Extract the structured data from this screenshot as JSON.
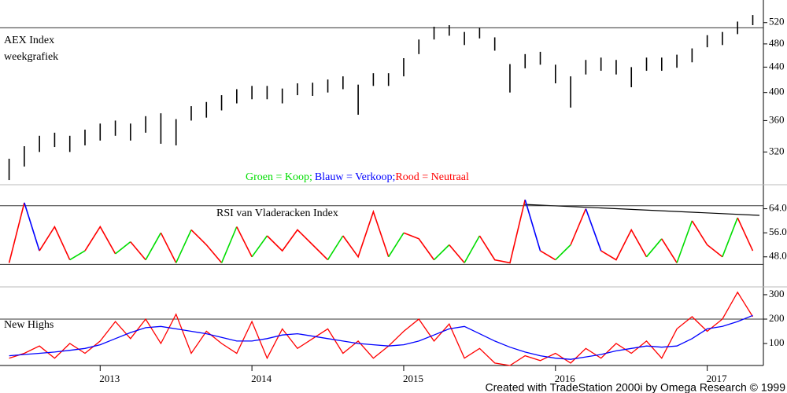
{
  "chart_data": [
    {
      "type": "range_bar",
      "log": true,
      "color": "#000000",
      "annotations": [
        "AEX Index",
        "weekgrafiek"
      ],
      "legend_text": [
        {
          "text": "Groen = Koop;",
          "color": "#00dd00"
        },
        {
          "text": "Blauw = Verkoop;",
          "color": "#0000ff"
        },
        {
          "text": "Rood = Neutraal",
          "color": "#ff0000"
        }
      ],
      "x": [
        2012.4,
        2012.5,
        2012.6,
        2012.7,
        2012.8,
        2012.9,
        2013.0,
        2013.1,
        2013.2,
        2013.3,
        2013.4,
        2013.5,
        2013.6,
        2013.7,
        2013.8,
        2013.9,
        2014.0,
        2014.1,
        2014.2,
        2014.3,
        2014.4,
        2014.5,
        2014.6,
        2014.7,
        2014.8,
        2014.9,
        2015.0,
        2015.1,
        2015.2,
        2015.3,
        2015.4,
        2015.5,
        2015.6,
        2015.7,
        2015.8,
        2015.9,
        2016.0,
        2016.1,
        2016.2,
        2016.3,
        2016.4,
        2016.5,
        2016.6,
        2016.7,
        2016.8,
        2016.9,
        2017.0,
        2017.1,
        2017.2,
        2017.3
      ],
      "xlim": [
        2012.34,
        2017.37
      ],
      "xticks": [
        2013,
        2014,
        2015,
        2016,
        2017
      ],
      "high": [
        312,
        327,
        340,
        344,
        340,
        348,
        356,
        360,
        356,
        366,
        370,
        362,
        380,
        386,
        396,
        405,
        410,
        410,
        406,
        414,
        415,
        420,
        425,
        412,
        430,
        430,
        455,
        488,
        512,
        515,
        502,
        510,
        492,
        445,
        462,
        466,
        444,
        425,
        452,
        456,
        452,
        440,
        456,
        456,
        461,
        472,
        496,
        502,
        522,
        535
      ],
      "low": [
        288,
        303,
        320,
        326,
        320,
        328,
        334,
        340,
        334,
        344,
        330,
        328,
        360,
        364,
        374,
        384,
        390,
        390,
        384,
        396,
        395,
        400,
        405,
        368,
        410,
        410,
        425,
        462,
        488,
        495,
        478,
        490,
        468,
        400,
        438,
        444,
        414,
        378,
        428,
        434,
        428,
        408,
        434,
        434,
        439,
        448,
        474,
        478,
        498,
        515
      ],
      "ylim": [
        283,
        566
      ],
      "yticks": [
        320,
        360,
        400,
        440,
        480,
        520
      ],
      "reference_lines": [
        510
      ]
    },
    {
      "type": "line",
      "annotations": [
        "RSI van Vladeracken Index"
      ],
      "values": [
        46,
        66,
        50,
        58,
        47,
        50,
        58,
        49,
        53,
        47,
        56,
        46,
        57,
        52,
        46,
        58,
        48,
        55,
        50,
        57,
        52,
        47,
        55,
        48,
        63,
        48,
        56,
        54,
        47,
        52,
        46,
        55,
        47,
        46,
        67,
        50,
        47,
        52,
        64,
        50,
        47,
        57,
        48,
        54,
        46,
        60,
        52,
        48,
        61,
        50
      ],
      "colors": [
        "#ff0000",
        "#ff0000",
        "#0000ff",
        "#ff0000",
        "#ff0000",
        "#00dd00",
        "#ff0000",
        "#ff0000",
        "#00dd00",
        "#ff0000",
        "#00dd00",
        "#ff0000",
        "#00dd00",
        "#ff0000",
        "#ff0000",
        "#00dd00",
        "#ff0000",
        "#00dd00",
        "#ff0000",
        "#ff0000",
        "#ff0000",
        "#ff0000",
        "#00dd00",
        "#ff0000",
        "#ff0000",
        "#ff0000",
        "#00dd00",
        "#ff0000",
        "#ff0000",
        "#00dd00",
        "#ff0000",
        "#00dd00",
        "#ff0000",
        "#ff0000",
        "#ff0000",
        "#0000ff",
        "#ff0000",
        "#00dd00",
        "#ff0000",
        "#0000ff",
        "#ff0000",
        "#ff0000",
        "#ff0000",
        "#00dd00",
        "#ff0000",
        "#00dd00",
        "#ff0000",
        "#ff0000",
        "#00dd00",
        "#ff0000"
      ],
      "ylim": [
        38,
        72
      ],
      "yticks": [
        {
          "value": 48,
          "label": "48.0"
        },
        {
          "value": 56,
          "label": "56.0"
        },
        {
          "value": 64,
          "label": "64.0"
        }
      ],
      "reference_lines": [
        65,
        45.5
      ]
    },
    {
      "type": "line",
      "annotations": [
        "New Highs"
      ],
      "series": [
        {
          "color": "#ff0000",
          "values": [
            40,
            60,
            90,
            40,
            100,
            60,
            110,
            190,
            120,
            200,
            100,
            220,
            60,
            150,
            100,
            60,
            190,
            40,
            160,
            80,
            120,
            160,
            60,
            110,
            40,
            90,
            150,
            200,
            110,
            180,
            40,
            80,
            20,
            10,
            50,
            30,
            60,
            20,
            80,
            40,
            100,
            60,
            110,
            40,
            160,
            210,
            150,
            200,
            310,
            210
          ]
        },
        {
          "color": "#0000ff",
          "values": [
            50,
            55,
            60,
            65,
            72,
            80,
            95,
            120,
            145,
            165,
            170,
            160,
            150,
            140,
            125,
            110,
            110,
            120,
            135,
            140,
            130,
            120,
            110,
            100,
            95,
            90,
            95,
            110,
            135,
            160,
            170,
            140,
            110,
            85,
            65,
            50,
            40,
            35,
            45,
            55,
            70,
            80,
            90,
            85,
            90,
            120,
            160,
            170,
            190,
            215
          ]
        }
      ],
      "ylim": [
        10,
        332
      ],
      "yticks": [
        100,
        200,
        300
      ],
      "reference_lines": [
        200
      ]
    }
  ],
  "footer": "Created with TradeStation 2000i by Omega Research © 1999"
}
